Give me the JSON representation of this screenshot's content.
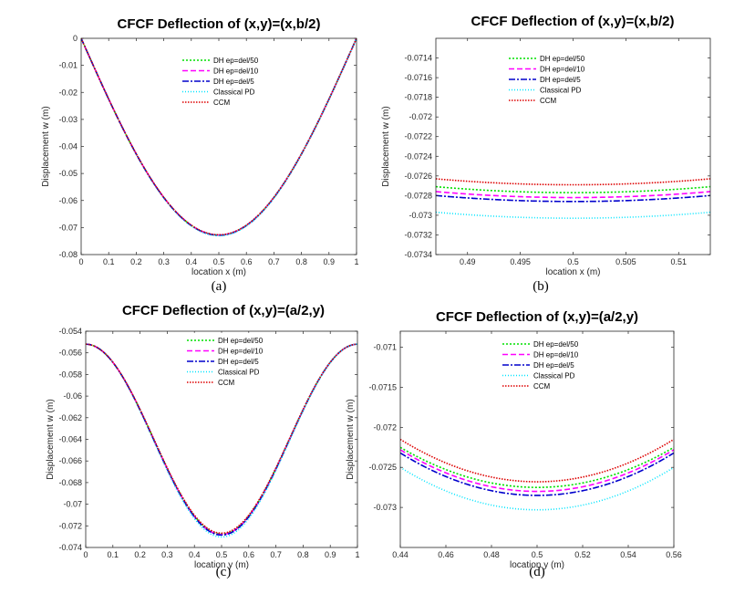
{
  "figure": {
    "legend_entries": [
      {
        "name": "DH ep=del/50",
        "color": "#00e000",
        "dash": "2,2"
      },
      {
        "name": "DH ep=del/10",
        "color": "#ff00ff",
        "dash": "6,3"
      },
      {
        "name": "DH ep=del/5",
        "color": "#0000cc",
        "dash": "7,2,2,2"
      },
      {
        "name": "Classical PD",
        "color": "#00e5ff",
        "dash": "1,2"
      },
      {
        "name": "CCM",
        "color": "#dd0000",
        "dash": "1.5,1.5"
      }
    ]
  },
  "chart_data": [
    {
      "type": "line",
      "panel": "a",
      "title": "CFCF Deflection of (x,y)=(x,b/2)",
      "xlabel": "location x (m)",
      "ylabel": "Displacement w (m)",
      "caption": "(a)",
      "xlim": [
        0,
        1
      ],
      "ylim": [
        -0.08,
        0
      ],
      "xticks": [
        0,
        0.1,
        0.2,
        0.3,
        0.4,
        0.5,
        0.6,
        0.7,
        0.8,
        0.9,
        1
      ],
      "xtick_labels": [
        "0",
        "0.1",
        "0.2",
        "0.3",
        "0.4",
        "0.5",
        "0.6",
        "0.7",
        "0.8",
        "0.9",
        "1"
      ],
      "yticks": [
        0,
        -0.01,
        -0.02,
        -0.03,
        -0.04,
        -0.05,
        -0.06,
        -0.07,
        -0.08
      ],
      "ytick_labels": [
        "0",
        "-0.01",
        "-0.02",
        "-0.03",
        "-0.04",
        "-0.05",
        "-0.06",
        "-0.07",
        "-0.08"
      ],
      "series": [
        {
          "name": "DH ep=del/50",
          "minimum": -0.07277
        },
        {
          "name": "DH ep=del/10",
          "minimum": -0.07275
        },
        {
          "name": "DH ep=del/5",
          "minimum": -0.07285
        },
        {
          "name": "Classical PD",
          "minimum": -0.07302
        },
        {
          "name": "CCM",
          "minimum": -0.07268
        }
      ],
      "profile": "x_direction",
      "grid": false,
      "legend_position": "top-center"
    },
    {
      "type": "line",
      "panel": "b",
      "title": "CFCF Deflection of (x,y)=(x,b/2)",
      "xlabel": "location x (m)",
      "ylabel": "Displacement w (m)",
      "caption": "(b)",
      "xlim": [
        0.487,
        0.513
      ],
      "ylim": [
        -0.0734,
        -0.0712
      ],
      "xticks": [
        0.49,
        0.495,
        0.5,
        0.505,
        0.51
      ],
      "xtick_labels": [
        "0.49",
        "0.495",
        "0.5",
        "0.505",
        "0.51"
      ],
      "yticks": [
        -0.0714,
        -0.0716,
        -0.0718,
        -0.072,
        -0.0722,
        -0.0724,
        -0.0726,
        -0.0728,
        -0.073,
        -0.0732,
        -0.0734
      ],
      "ytick_labels": [
        "-0.0714",
        "-0.0716",
        "-0.0718",
        "-0.072",
        "-0.0722",
        "-0.0724",
        "-0.0726",
        "-0.0728",
        "-0.073",
        "-0.0732",
        "-0.0734"
      ],
      "series": [
        {
          "name": "DH ep=del/50",
          "minimum": -0.07277
        },
        {
          "name": "DH ep=del/10",
          "minimum": -0.07282
        },
        {
          "name": "DH ep=del/5",
          "minimum": -0.07286
        },
        {
          "name": "Classical PD",
          "minimum": -0.07303
        },
        {
          "name": "CCM",
          "minimum": -0.07269
        }
      ],
      "profile": "x_direction",
      "grid": false,
      "legend_position": "top-center"
    },
    {
      "type": "line",
      "panel": "c",
      "title": "CFCF Deflection of (x,y)=(a/2,y)",
      "xlabel": "location y (m)",
      "ylabel": "Displacement w (m)",
      "caption": "(c)",
      "xlim": [
        0,
        1
      ],
      "ylim": [
        -0.074,
        -0.054
      ],
      "xticks": [
        0,
        0.1,
        0.2,
        0.3,
        0.4,
        0.5,
        0.6,
        0.7,
        0.8,
        0.9,
        1
      ],
      "xtick_labels": [
        "0",
        "0.1",
        "0.2",
        "0.3",
        "0.4",
        "0.5",
        "0.6",
        "0.7",
        "0.8",
        "0.9",
        "1"
      ],
      "yticks": [
        -0.054,
        -0.056,
        -0.058,
        -0.06,
        -0.062,
        -0.064,
        -0.066,
        -0.068,
        -0.07,
        -0.072,
        -0.074
      ],
      "ytick_labels": [
        "-0.054",
        "-0.056",
        "-0.058",
        "-0.06",
        "-0.062",
        "-0.064",
        "-0.066",
        "-0.068",
        "-0.07",
        "-0.072",
        "-0.074"
      ],
      "edge_value": -0.0552,
      "series": [
        {
          "name": "DH ep=del/50",
          "minimum": -0.07275
        },
        {
          "name": "DH ep=del/10",
          "minimum": -0.0728
        },
        {
          "name": "DH ep=del/5",
          "minimum": -0.07285
        },
        {
          "name": "Classical PD",
          "minimum": -0.07303
        },
        {
          "name": "CCM",
          "minimum": -0.07268
        }
      ],
      "profile": "y_direction",
      "grid": false,
      "legend_position": "top-center"
    },
    {
      "type": "line",
      "panel": "d",
      "title": "CFCF Deflection of (x,y)=(a/2,y)",
      "xlabel": "location y (m)",
      "ylabel": "Displacement w (m)",
      "caption": "(d)",
      "xlim": [
        0.44,
        0.56
      ],
      "ylim": [
        -0.0735,
        -0.0708
      ],
      "xticks": [
        0.44,
        0.46,
        0.48,
        0.5,
        0.52,
        0.54,
        0.56
      ],
      "xtick_labels": [
        "0.44",
        "0.46",
        "0.48",
        "0.5",
        "0.52",
        "0.54",
        "0.56"
      ],
      "yticks": [
        -0.071,
        -0.0715,
        -0.072,
        -0.0725,
        -0.073
      ],
      "ytick_labels": [
        "-0.071",
        "-0.0715",
        "-0.072",
        "-0.0725",
        "-0.073"
      ],
      "series": [
        {
          "name": "DH ep=del/50",
          "minimum": -0.07275,
          "edge": -0.07225
        },
        {
          "name": "DH ep=del/10",
          "minimum": -0.0728,
          "edge": -0.07228
        },
        {
          "name": "DH ep=del/5",
          "minimum": -0.07285,
          "edge": -0.07232
        },
        {
          "name": "Classical PD",
          "minimum": -0.07303,
          "edge": -0.0725
        },
        {
          "name": "CCM",
          "minimum": -0.07268,
          "edge": -0.07215
        }
      ],
      "profile": "parabola",
      "grid": false,
      "legend_position": "top-center"
    }
  ]
}
